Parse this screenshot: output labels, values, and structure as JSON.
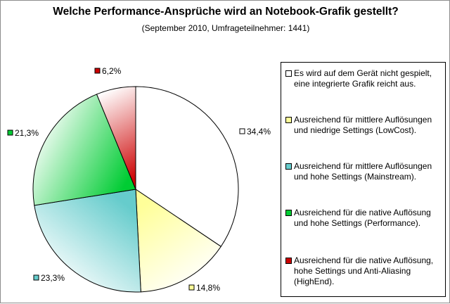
{
  "chart_data": {
    "type": "pie",
    "title": "Welche Performance-Ansprüche wird an Notebook-Grafik gestellt?",
    "subtitle": "(September 2010, Umfrageteilnehmer: 1441)",
    "legend_position": "right",
    "slices": [
      {
        "label": "Es wird auf dem Gerät nicht gespielt, eine integrierte Grafik reicht aus.",
        "value": 34.4,
        "value_label": "34,4%",
        "color": "#ffffff"
      },
      {
        "label": "Ausreichend für mittlere Auflösungen und niedrige Settings (LowCost).",
        "value": 14.8,
        "value_label": "14,8%",
        "color": "#ffff99"
      },
      {
        "label": "Ausreichend für mittlere Auflösungen und hohe Settings (Mainstream).",
        "value": 23.3,
        "value_label": "23,3%",
        "color": "#66cccc"
      },
      {
        "label": "Ausreichend für die native Auflösung und hohe Settings (Performance).",
        "value": 21.3,
        "value_label": "21,3%",
        "color": "#00cc33"
      },
      {
        "label": "Ausreichend für die native Auflösung, hohe Settings und Anti-Aliasing (HighEnd).",
        "value": 6.2,
        "value_label": "6,2%",
        "color": "#cc0000"
      }
    ]
  }
}
